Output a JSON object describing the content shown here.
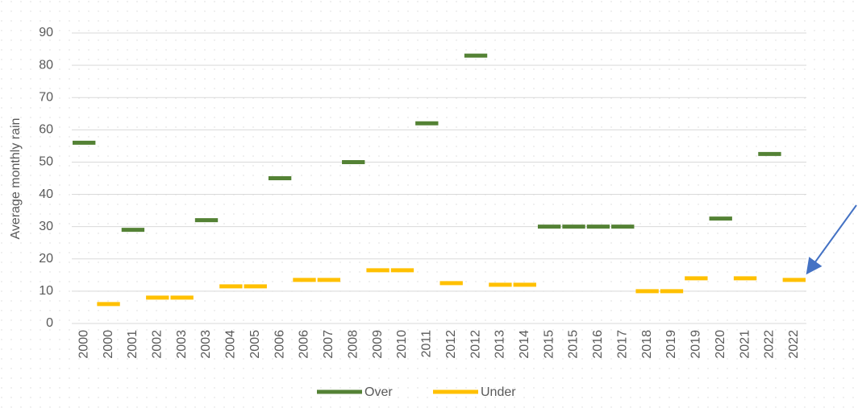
{
  "chart_data": {
    "type": "dash",
    "y_label": "Average monthly rain",
    "categories": [
      "2000",
      "2000",
      "2001",
      "2002",
      "2003",
      "2003",
      "2004",
      "2005",
      "2006",
      "2006",
      "2007",
      "2008",
      "2009",
      "2010",
      "2011",
      "2012",
      "2012",
      "2013",
      "2014",
      "2015",
      "2015",
      "2016",
      "2017",
      "2018",
      "2019",
      "2019",
      "2020",
      "2021",
      "2022",
      "2022"
    ],
    "series": [
      {
        "name": "Over",
        "color": "#548235",
        "values": [
          56,
          null,
          29,
          null,
          null,
          32,
          null,
          null,
          45,
          null,
          null,
          50,
          null,
          null,
          62,
          null,
          83,
          null,
          null,
          30,
          30,
          30,
          30,
          null,
          null,
          null,
          32.5,
          null,
          52.5,
          null
        ]
      },
      {
        "name": "Under",
        "color": "#ffc000",
        "values": [
          null,
          6,
          null,
          8,
          8,
          null,
          11.5,
          11.5,
          null,
          13.5,
          13.5,
          null,
          16.5,
          16.5,
          null,
          12.5,
          null,
          12,
          12,
          null,
          null,
          null,
          null,
          10,
          10,
          14,
          null,
          14,
          null,
          13.5
        ]
      }
    ],
    "ylim": [
      0,
      90
    ],
    "yticks": [
      0,
      10,
      20,
      30,
      40,
      50,
      60,
      70,
      80,
      90
    ],
    "grid": true,
    "legend": "bottom"
  }
}
